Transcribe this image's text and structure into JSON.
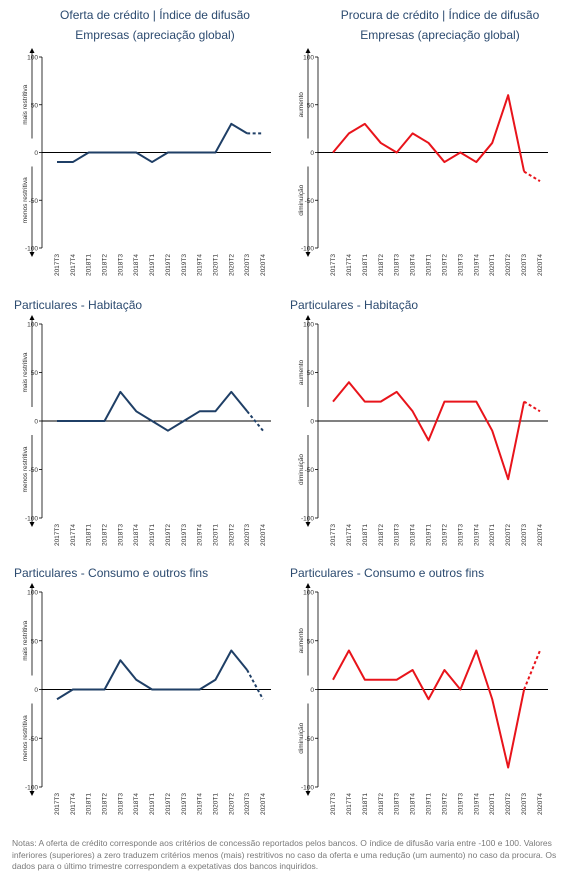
{
  "header": {
    "left_title": "Oferta de crédito | Índice de difusão",
    "right_title": "Procura de crédito | Índice de difusão",
    "left_subtitle": "Empresas (apreciação global)",
    "right_subtitle": "Empresas (apreciação global)"
  },
  "panel_titles": {
    "p3": "Particulares - Habitação",
    "p4": "Particulares - Habitação",
    "p5": "Particulares - Consumo e outros fins",
    "p6": "Particulares - Consumo e outros fins"
  },
  "colors": {
    "supply": "#1f3f66",
    "demand": "#e8141b",
    "axis": "#000000"
  },
  "notes": "Notas: A oferta de crédito corresponde aos critérios de concessão reportados pelos bancos. O índice de difusão varia entre -100 e 100. Valores inferiores (superiores) a zero traduzem critérios menos (mais) restritivos no caso da oferta e uma redução (um aumento) no caso da procura. Os dados para o último trimestre correspondem a expetativas dos bancos inquiridos.",
  "chart_data": [
    {
      "type": "line",
      "title": "Empresas (apreciação global)",
      "categories": [
        "2017T3",
        "2017T4",
        "2018T1",
        "2018T2",
        "2018T3",
        "2018T4",
        "2019T1",
        "2019T2",
        "2019T3",
        "2019T4",
        "2020T1",
        "2020T2",
        "2020T3",
        "2020T4"
      ],
      "series": [
        {
          "values": [
            -10,
            -10,
            0,
            0,
            0,
            0,
            -10,
            0,
            0,
            0,
            0,
            30,
            20,
            20
          ]
        }
      ],
      "dashed_last_segment": true,
      "ylim": [
        -100,
        100
      ],
      "yticks": [
        "100",
        "50",
        "0",
        "-50",
        "-100"
      ],
      "upper_label": "mais restritiva",
      "lower_label": "menos restritiva",
      "color": "#1f3f66"
    },
    {
      "type": "line",
      "title": "Empresas (apreciação global)",
      "categories": [
        "2017T3",
        "2017T4",
        "2018T1",
        "2018T2",
        "2018T3",
        "2018T4",
        "2019T1",
        "2019T2",
        "2019T3",
        "2019T4",
        "2020T1",
        "2020T2",
        "2020T3",
        "2020T4"
      ],
      "series": [
        {
          "values": [
            0,
            20,
            30,
            10,
            0,
            20,
            10,
            -10,
            0,
            -10,
            10,
            60,
            -20,
            -30
          ]
        }
      ],
      "dashed_last_segment": true,
      "ylim": [
        -100,
        100
      ],
      "yticks": [
        "100",
        "50",
        "0",
        "-50",
        "-100"
      ],
      "upper_label": "aumento",
      "lower_label": "diminuição",
      "color": "#e8141b"
    },
    {
      "type": "line",
      "title": "Particulares - Habitação",
      "categories": [
        "2017T3",
        "2017T4",
        "2018T1",
        "2018T2",
        "2018T3",
        "2018T4",
        "2019T1",
        "2019T2",
        "2019T3",
        "2019T4",
        "2020T1",
        "2020T2",
        "2020T3",
        "2020T4"
      ],
      "series": [
        {
          "values": [
            0,
            0,
            0,
            0,
            30,
            10,
            0,
            -10,
            0,
            10,
            10,
            30,
            10,
            -10
          ]
        }
      ],
      "dashed_last_segment": true,
      "ylim": [
        -100,
        100
      ],
      "yticks": [
        "100",
        "50",
        "0",
        "-50",
        "-100"
      ],
      "upper_label": "mais restritiva",
      "lower_label": "menos restritiva",
      "color": "#1f3f66"
    },
    {
      "type": "line",
      "title": "Particulares - Habitação",
      "categories": [
        "2017T3",
        "2017T4",
        "2018T1",
        "2018T2",
        "2018T3",
        "2018T4",
        "2019T1",
        "2019T2",
        "2019T3",
        "2019T4",
        "2020T1",
        "2020T2",
        "2020T3",
        "2020T4"
      ],
      "series": [
        {
          "values": [
            20,
            40,
            20,
            20,
            30,
            10,
            -20,
            20,
            20,
            20,
            -10,
            -60,
            20,
            10
          ]
        }
      ],
      "dashed_last_segment": true,
      "ylim": [
        -100,
        100
      ],
      "yticks": [
        "100",
        "50",
        "0",
        "-50",
        "-100"
      ],
      "upper_label": "aumento",
      "lower_label": "diminuição",
      "color": "#e8141b"
    },
    {
      "type": "line",
      "title": "Particulares - Consumo e outros fins",
      "categories": [
        "2017T3",
        "2017T4",
        "2018T1",
        "2018T2",
        "2018T3",
        "2018T4",
        "2019T1",
        "2019T2",
        "2019T3",
        "2019T4",
        "2020T1",
        "2020T2",
        "2020T3",
        "2020T4"
      ],
      "series": [
        {
          "values": [
            -10,
            0,
            0,
            0,
            30,
            10,
            0,
            0,
            0,
            0,
            10,
            40,
            20,
            -10
          ]
        }
      ],
      "dashed_last_segment": true,
      "ylim": [
        -100,
        100
      ],
      "yticks": [
        "100",
        "50",
        "0",
        "-50",
        "-100"
      ],
      "upper_label": "mais restritiva",
      "lower_label": "menos restritiva",
      "color": "#1f3f66"
    },
    {
      "type": "line",
      "title": "Particulares - Consumo e outros fins",
      "categories": [
        "2017T3",
        "2017T4",
        "2018T1",
        "2018T2",
        "2018T3",
        "2018T4",
        "2019T1",
        "2019T2",
        "2019T3",
        "2019T4",
        "2020T1",
        "2020T2",
        "2020T3",
        "2020T4"
      ],
      "series": [
        {
          "values": [
            10,
            40,
            10,
            10,
            10,
            20,
            -10,
            20,
            0,
            40,
            -10,
            -80,
            0,
            40
          ]
        }
      ],
      "dashed_last_segment": true,
      "ylim": [
        -100,
        100
      ],
      "yticks": [
        "100",
        "50",
        "0",
        "-50",
        "-100"
      ],
      "upper_label": "aumento",
      "lower_label": "diminuição",
      "color": "#e8141b"
    }
  ]
}
